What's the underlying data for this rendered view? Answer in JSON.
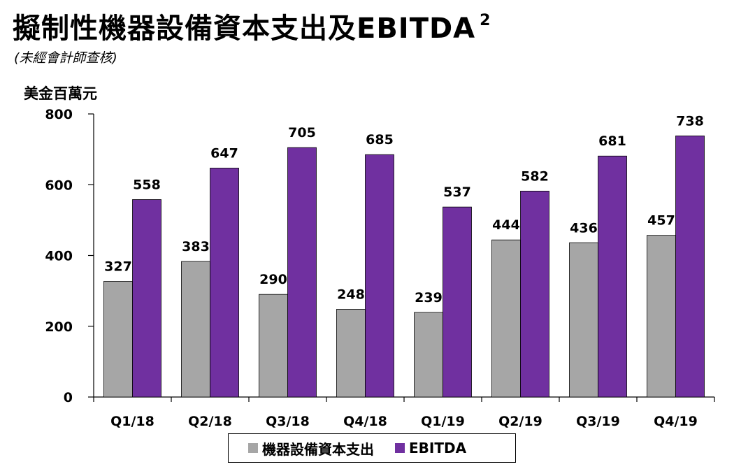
{
  "title": "擬制性機器設備資本支出及EBITDA",
  "title_sup": "2",
  "subtitle": "(未經會計師查核)",
  "unit_label": "美金百萬元",
  "colors": {
    "capex": "#a6a6a6",
    "ebitda": "#7030a0"
  },
  "chart_data": {
    "type": "bar",
    "categories": [
      "Q1/18",
      "Q2/18",
      "Q3/18",
      "Q4/18",
      "Q1/19",
      "Q2/19",
      "Q3/19",
      "Q4/19"
    ],
    "series": [
      {
        "name": "機器設備資本支出",
        "values": [
          327,
          383,
          290,
          248,
          239,
          444,
          436,
          457
        ]
      },
      {
        "name": "EBITDA",
        "values": [
          558,
          647,
          705,
          685,
          537,
          582,
          681,
          738
        ]
      }
    ],
    "ylim": [
      0,
      800
    ],
    "yticks": [
      0,
      200,
      400,
      600,
      800
    ],
    "grid": false,
    "legend": "bottom"
  }
}
